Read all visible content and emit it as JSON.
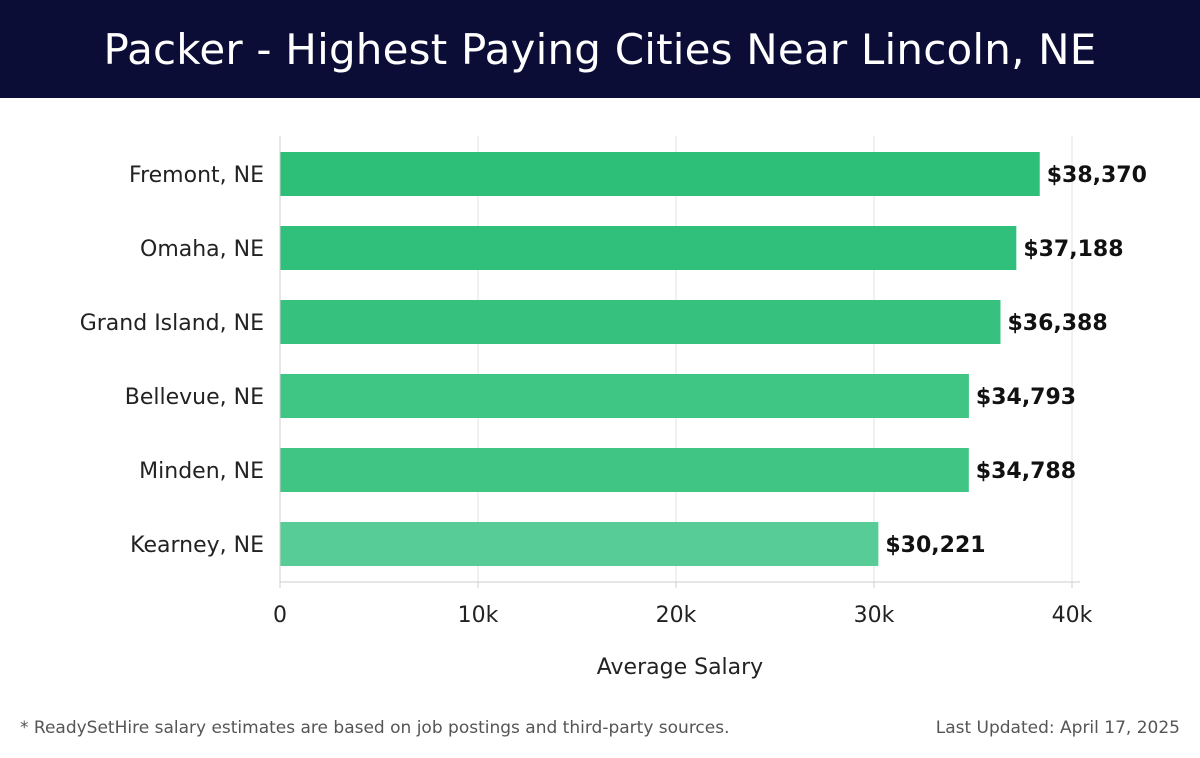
{
  "header": {
    "title": "Packer - Highest Paying Cities Near Lincoln, NE"
  },
  "chart_data": {
    "type": "bar",
    "orientation": "horizontal",
    "categories": [
      "Fremont, NE",
      "Omaha, NE",
      "Grand Island, NE",
      "Bellevue, NE",
      "Minden, NE",
      "Kearney, NE"
    ],
    "values": [
      38370,
      37188,
      36388,
      34793,
      34788,
      30221
    ],
    "value_labels": [
      "$38,370",
      "$37,188",
      "$36,388",
      "$34,793",
      "$34,788",
      "$30,221"
    ],
    "bar_colors": [
      "#2dbf78",
      "#31c07b",
      "#36c27e",
      "#3fc584",
      "#41c585",
      "#58cc96"
    ],
    "xlabel": "Average Salary",
    "ylabel": "",
    "xlim": [
      0,
      40000
    ],
    "x_ticks": [
      0,
      10000,
      20000,
      30000,
      40000
    ],
    "x_tick_labels": [
      "0",
      "10k",
      "20k",
      "30k",
      "40k"
    ],
    "grid": true,
    "legend": "none"
  },
  "footer": {
    "note": "* ReadySetHire salary estimates are based on job postings and third-party sources.",
    "updated": "Last Updated: April 17, 2025"
  }
}
